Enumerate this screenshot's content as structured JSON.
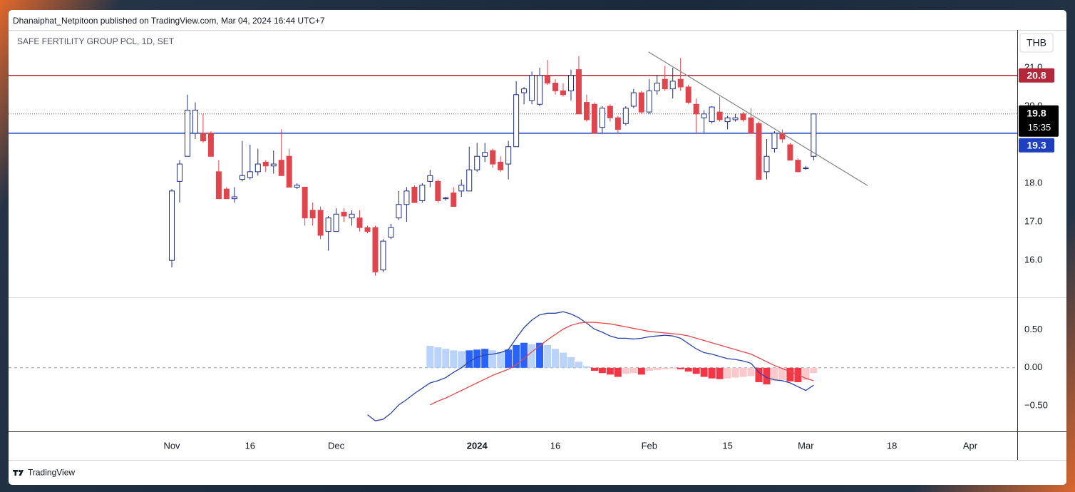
{
  "header": {
    "byline": "Dhanaiphat_Netpitoon published on TradingView.com, Mar 04, 2024 16:44 UTC+7",
    "symbol": "SAFE FERTILITY GROUP PCL, 1D, SET",
    "currency": "THB",
    "brand": "TradingView"
  },
  "chart_data": [
    {
      "type": "candlestick",
      "categories": [
        "Nov",
        null,
        null,
        null,
        null,
        null,
        null,
        null,
        null,
        null,
        "16",
        null,
        null,
        null,
        null,
        null,
        null,
        null,
        null,
        null,
        null,
        "Dec",
        null,
        null,
        null,
        null,
        null,
        null,
        null,
        null,
        null,
        null,
        null,
        null,
        null,
        null,
        null,
        null,
        null,
        "2024",
        null,
        null,
        null,
        null,
        null,
        null,
        null,
        null,
        null,
        "16",
        null,
        null,
        null,
        null,
        null,
        null,
        null,
        null,
        null,
        null,
        null,
        "Feb",
        null,
        null,
        null,
        null,
        null,
        null,
        null,
        null,
        null,
        "15",
        null,
        null,
        null,
        null,
        null,
        null,
        null,
        null,
        null,
        "Mar",
        null,
        null,
        null,
        null,
        null,
        null,
        null,
        null,
        null,
        null,
        "18",
        null,
        null,
        null,
        null,
        null,
        null,
        null,
        null,
        null,
        "Apr",
        null,
        null,
        null,
        null,
        null
      ],
      "open": [
        16.0,
        18.05,
        18.7,
        19.3,
        19.3,
        19.3,
        18.3,
        17.85,
        17.6,
        18.1,
        18.15,
        18.3,
        18.55,
        18.45,
        18.6,
        18.7,
        17.9,
        17.9,
        17.3,
        17.3,
        16.75,
        16.75,
        17.25,
        17.1,
        17.1,
        16.85,
        16.85,
        15.75,
        16.6,
        17.1,
        17.45,
        17.9,
        17.55,
        18.05,
        18.05,
        17.6,
        17.75,
        17.8,
        17.8,
        18.35,
        18.7,
        18.85,
        18.55,
        18.5,
        18.95,
        20.35,
        20.15,
        20.05,
        20.8,
        20.6,
        20.4,
        20.4,
        20.95,
        20.1,
        20.05,
        19.45,
        20.0,
        19.7,
        19.55,
        20.0,
        20.35,
        19.85,
        20.4,
        20.7,
        20.45,
        20.7,
        20.5,
        20.05,
        19.7,
        19.6,
        19.85,
        19.6,
        19.65,
        19.8,
        19.7,
        19.55,
        18.3,
        18.9,
        19.3,
        19.0,
        18.6,
        18.38,
        18.7,
        null,
        null,
        null,
        null,
        null,
        null,
        null,
        null,
        null,
        null,
        null,
        null,
        null,
        null,
        null,
        null,
        null,
        null,
        null,
        null,
        null,
        null,
        null,
        null,
        null
      ],
      "high": [
        17.85,
        18.6,
        20.3,
        20.1,
        19.8,
        19.35,
        18.6,
        17.9,
        17.9,
        19.1,
        19.0,
        18.9,
        18.6,
        18.85,
        19.4,
        18.9,
        18.0,
        17.9,
        17.5,
        17.4,
        17.15,
        17.35,
        17.35,
        17.3,
        17.3,
        16.9,
        16.9,
        16.55,
        16.95,
        17.8,
        17.9,
        17.95,
        18.0,
        18.35,
        18.1,
        17.65,
        17.9,
        18.1,
        18.95,
        19.05,
        19.05,
        18.9,
        18.7,
        19.1,
        20.65,
        20.5,
        20.9,
        21.0,
        21.2,
        20.7,
        20.6,
        20.95,
        21.3,
        20.3,
        20.1,
        20.0,
        20.05,
        19.75,
        20.0,
        20.45,
        20.4,
        20.7,
        20.8,
        21.05,
        21.0,
        21.25,
        20.55,
        20.2,
        19.9,
        20.0,
        20.25,
        19.75,
        19.8,
        19.85,
        19.95,
        19.6,
        19.15,
        19.35,
        19.4,
        19.05,
        18.65,
        18.45,
        19.8,
        null,
        null,
        null,
        null,
        null,
        null,
        null,
        null,
        null,
        null,
        null,
        null,
        null,
        null,
        null,
        null,
        null,
        null,
        null,
        null,
        null,
        null,
        null,
        null,
        null
      ],
      "low": [
        15.82,
        17.5,
        18.7,
        19.15,
        19.05,
        18.7,
        17.6,
        17.6,
        17.5,
        18.05,
        18.1,
        18.2,
        18.3,
        18.25,
        18.2,
        17.9,
        17.85,
        16.9,
        16.9,
        16.55,
        16.25,
        16.75,
        17.0,
        16.9,
        16.75,
        16.7,
        15.6,
        15.7,
        16.55,
        17.05,
        17.0,
        17.5,
        17.5,
        17.9,
        17.5,
        17.55,
        17.4,
        17.65,
        17.8,
        18.3,
        18.55,
        18.4,
        18.3,
        18.1,
        18.95,
        20.05,
        20.05,
        20.0,
        20.55,
        20.3,
        20.25,
        20.15,
        19.8,
        19.6,
        19.3,
        19.3,
        19.6,
        19.3,
        19.5,
        19.95,
        19.8,
        19.8,
        20.3,
        20.4,
        20.2,
        20.4,
        20.05,
        19.3,
        19.3,
        19.55,
        19.6,
        19.4,
        19.6,
        19.6,
        19.3,
        18.1,
        18.1,
        18.8,
        19.05,
        18.6,
        18.3,
        18.35,
        18.6,
        null,
        null,
        null,
        null,
        null,
        null,
        null,
        null,
        null,
        null,
        null,
        null,
        null,
        null,
        null,
        null,
        null,
        null,
        null,
        null,
        null,
        null,
        null,
        null,
        null
      ],
      "close": [
        17.8,
        18.5,
        19.9,
        19.9,
        19.1,
        18.7,
        17.6,
        17.6,
        17.65,
        18.2,
        18.3,
        18.5,
        18.45,
        18.5,
        18.2,
        17.9,
        17.95,
        17.1,
        17.1,
        16.65,
        17.1,
        17.2,
        17.15,
        17.2,
        16.85,
        16.75,
        15.7,
        16.5,
        16.85,
        17.45,
        17.8,
        17.5,
        17.95,
        18.2,
        17.55,
        17.62,
        17.4,
        17.95,
        18.35,
        18.7,
        18.8,
        18.5,
        18.35,
        18.95,
        20.3,
        20.45,
        20.8,
        20.8,
        20.6,
        20.4,
        20.3,
        20.8,
        19.8,
        19.65,
        19.3,
        19.95,
        19.7,
        19.4,
        19.95,
        20.35,
        19.85,
        20.4,
        20.6,
        20.45,
        20.65,
        20.5,
        20.1,
        19.8,
        19.8,
        19.98,
        19.65,
        19.7,
        19.7,
        19.65,
        19.3,
        18.1,
        18.7,
        19.3,
        19.15,
        18.6,
        18.3,
        18.4,
        19.8,
        null,
        null,
        null,
        null,
        null,
        null,
        null,
        null,
        null,
        null,
        null,
        null,
        null,
        null,
        null,
        null,
        null,
        null,
        null,
        null,
        null,
        null,
        null,
        null,
        null
      ],
      "up_color": "#ffffff",
      "up_border": "#1f2f86",
      "down_color": "#e0444c",
      "ylim": [
        15.04,
        21.98
      ],
      "yticks": [
        {
          "value": 16,
          "label": "16.0"
        },
        {
          "value": 17,
          "label": "17.0"
        },
        {
          "value": 18,
          "label": "18.0"
        },
        {
          "value": 20,
          "label": "20.0"
        },
        {
          "value": 21,
          "label": "21.0"
        }
      ],
      "grid": false,
      "hlines": [
        {
          "value": 20.8,
          "color": "#b2283a"
        },
        {
          "value": 19.3,
          "color": "#1e3fbf"
        }
      ],
      "last_price": 19.8,
      "countdown": "15:35",
      "trendline": {
        "x": [
          60.9,
          88.9
        ],
        "y": [
          21.41,
          17.94
        ],
        "color": "#8a8a8a"
      }
    },
    {
      "type": "macd",
      "series": [
        {
          "color": "#2b44a8",
          "values": [
            null,
            null,
            null,
            null,
            null,
            null,
            null,
            null,
            null,
            null,
            null,
            null,
            null,
            null,
            null,
            null,
            null,
            null,
            null,
            null,
            null,
            null,
            null,
            null,
            null,
            -0.62,
            -0.7,
            -0.68,
            -0.6,
            -0.49,
            -0.42,
            -0.34,
            -0.27,
            -0.2,
            -0.17,
            -0.13,
            -0.06,
            0,
            0.08,
            0.14,
            0.17,
            0.18,
            0.2,
            0.24,
            0.39,
            0.53,
            0.63,
            0.7,
            0.72,
            0.72,
            0.74,
            0.71,
            0.66,
            0.59,
            0.51,
            0.47,
            0.42,
            0.39,
            0.39,
            0.38,
            0.39,
            0.41,
            0.42,
            0.43,
            0.42,
            0.39,
            0.32,
            0.25,
            0.2,
            0.18,
            0.15,
            0.12,
            0.11,
            0.09,
            0.06,
            -0.06,
            -0.13,
            -0.16,
            -0.17,
            -0.2,
            -0.25,
            -0.3,
            -0.23,
            null,
            null,
            null,
            null,
            null,
            null,
            null,
            null,
            null,
            null,
            null,
            null,
            null,
            null,
            null,
            null,
            null,
            null,
            null,
            null,
            null,
            null,
            null,
            null,
            null
          ]
        },
        {
          "color": "#e5484d",
          "values": [
            null,
            null,
            null,
            null,
            null,
            null,
            null,
            null,
            null,
            null,
            null,
            null,
            null,
            null,
            null,
            null,
            null,
            null,
            null,
            null,
            null,
            null,
            null,
            null,
            null,
            null,
            null,
            null,
            null,
            null,
            null,
            null,
            null,
            -0.49,
            -0.44,
            -0.4,
            -0.35,
            -0.3,
            -0.25,
            -0.2,
            -0.15,
            -0.1,
            -0.06,
            -0.02,
            0.04,
            0.12,
            0.21,
            0.29,
            0.37,
            0.44,
            0.51,
            0.56,
            0.59,
            0.6,
            0.6,
            0.59,
            0.58,
            0.56,
            0.54,
            0.52,
            0.5,
            0.48,
            0.47,
            0.46,
            0.45,
            0.44,
            0.42,
            0.39,
            0.36,
            0.33,
            0.3,
            0.27,
            0.24,
            0.21,
            0.18,
            0.13,
            0.08,
            0.03,
            -0.01,
            -0.05,
            -0.09,
            -0.14,
            -0.17,
            null,
            null,
            null,
            null,
            null,
            null,
            null,
            null,
            null,
            null,
            null,
            null,
            null,
            null,
            null,
            null,
            null,
            null,
            null,
            null,
            null,
            null,
            null,
            null,
            null
          ]
        }
      ],
      "histogram": [
        null,
        null,
        null,
        null,
        null,
        null,
        null,
        null,
        null,
        null,
        null,
        null,
        null,
        null,
        null,
        null,
        null,
        null,
        null,
        null,
        null,
        null,
        null,
        null,
        null,
        null,
        null,
        null,
        null,
        null,
        null,
        null,
        null,
        0.29,
        0.27,
        0.25,
        0.23,
        0.22,
        0.23,
        0.24,
        0.25,
        0.23,
        0.21,
        0.24,
        0.3,
        0.33,
        0.31,
        0.33,
        0.3,
        0.25,
        0.2,
        0.14,
        0.08,
        0.02,
        -0.04,
        -0.07,
        -0.09,
        -0.12,
        -0.08,
        -0.07,
        -0.09,
        -0.04,
        -0.03,
        -0.02,
        -0.01,
        -0.02,
        -0.05,
        -0.08,
        -0.12,
        -0.14,
        -0.15,
        -0.14,
        -0.13,
        -0.12,
        -0.11,
        -0.19,
        -0.22,
        -0.17,
        -0.16,
        -0.18,
        -0.19,
        -0.16,
        -0.07,
        null,
        null,
        null,
        null,
        null,
        null,
        null,
        null,
        null,
        null,
        null,
        null,
        null,
        null,
        null,
        null,
        null,
        null,
        null,
        null,
        null,
        null,
        null,
        null,
        null
      ],
      "histogram_colors": {
        "up_rising": "#2962ff",
        "up_falling": "#b9d3fa",
        "down_falling": "#f23645",
        "down_rising": "#fbc8cb"
      },
      "ylim": [
        -0.84,
        0.93
      ],
      "yticks": [
        {
          "value": 0.5,
          "label": "0.50"
        },
        {
          "value": 0,
          "label": "0.00"
        },
        {
          "value": -0.5,
          "label": "−0.50"
        }
      ],
      "zero_line": true
    }
  ]
}
